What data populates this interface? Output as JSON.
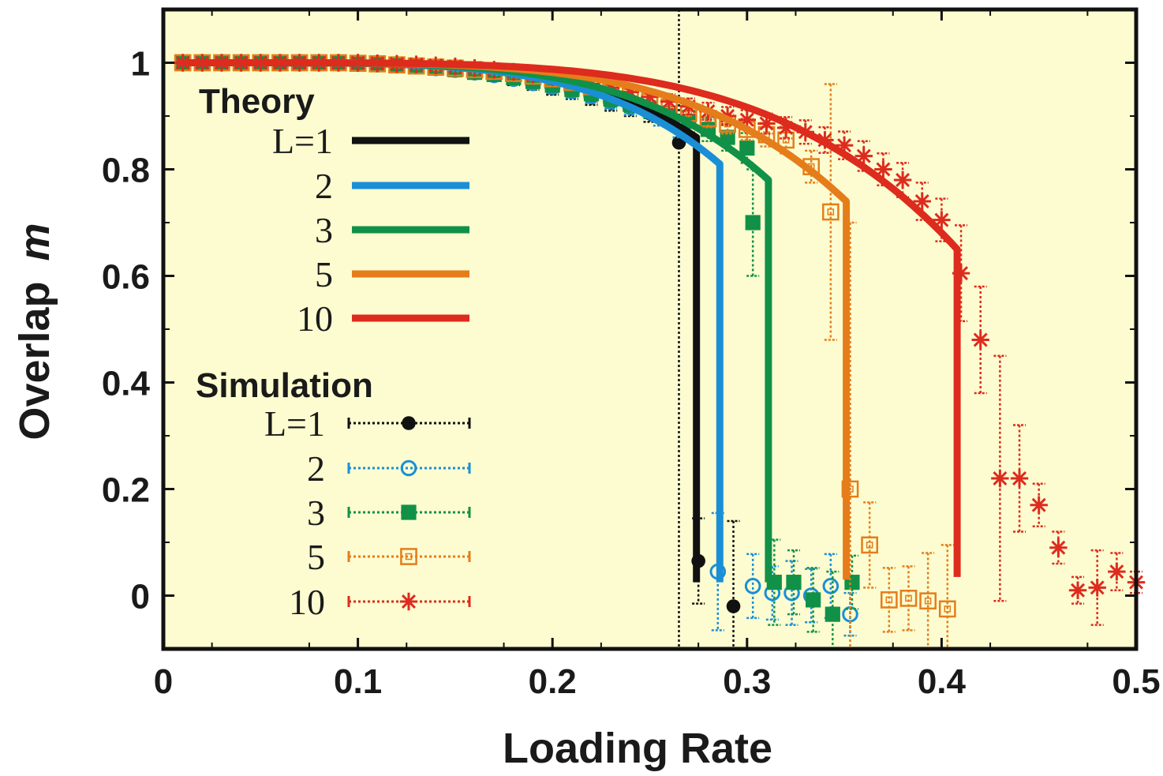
{
  "chart_data": {
    "type": "line",
    "xlabel": "Loading Rate",
    "ylabel_text": "Overlap",
    "ylabel_symbol": "m",
    "xlim": [
      0,
      0.5
    ],
    "ylim": [
      -0.1,
      1.1
    ],
    "x_ticks": [
      "0",
      "0.1",
      "0.2",
      "0.3",
      "0.4",
      "0.5"
    ],
    "y_ticks": [
      "0",
      "0.2",
      "0.4",
      "0.6",
      "0.8",
      "1"
    ],
    "x_tick_values": [
      0,
      0.1,
      0.2,
      0.3,
      0.4,
      0.5
    ],
    "y_tick_values": [
      0,
      0.2,
      0.4,
      0.6,
      0.8,
      1
    ],
    "grid": false,
    "plot_background": "#fcfcd0",
    "legend": {
      "placement": "left",
      "theory_title": "Theory",
      "simulation_title": "Simulation",
      "theory_labels": [
        "L=1",
        "2",
        "3",
        "5",
        "10"
      ],
      "simulation_labels": [
        "L=1",
        "2",
        "3",
        "5",
        "10"
      ]
    },
    "theory": [
      {
        "L": "1",
        "color": "#111111",
        "alpha_c": 0.274,
        "m_c": 0.86,
        "m_end": 0.025,
        "a0": 0.012
      },
      {
        "L": "2",
        "color": "#1a8fd6",
        "alpha_c": 0.286,
        "m_c": 0.81,
        "m_end": 0.025,
        "a0": 0.012
      },
      {
        "L": "3",
        "color": "#119148",
        "alpha_c": 0.311,
        "m_c": 0.78,
        "m_end": 0.025,
        "a0": 0.012
      },
      {
        "L": "5",
        "color": "#e57d1b",
        "alpha_c": 0.351,
        "m_c": 0.74,
        "m_end": 0.03,
        "a0": 0.012
      },
      {
        "L": "10",
        "color": "#dd2b1e",
        "alpha_c": 0.408,
        "m_c": 0.65,
        "m_end": 0.035,
        "a0": 0.012
      }
    ],
    "simulation": [
      {
        "L": "1",
        "color": "#111111",
        "marker": "dot",
        "points": [
          [
            0.01,
            1.0,
            0.003
          ],
          [
            0.02,
            1.0,
            0.003
          ],
          [
            0.03,
            1.0,
            0.003
          ],
          [
            0.04,
            1.0,
            0.003
          ],
          [
            0.05,
            1.0,
            0.003
          ],
          [
            0.06,
            1.0,
            0.003
          ],
          [
            0.07,
            1.0,
            0.003
          ],
          [
            0.08,
            1.0,
            0.003
          ],
          [
            0.09,
            1.0,
            0.003
          ],
          [
            0.1,
            0.998,
            0.004
          ],
          [
            0.11,
            0.997,
            0.004
          ],
          [
            0.12,
            0.995,
            0.005
          ],
          [
            0.13,
            0.993,
            0.005
          ],
          [
            0.14,
            0.99,
            0.006
          ],
          [
            0.15,
            0.985,
            0.007
          ],
          [
            0.16,
            0.98,
            0.008
          ],
          [
            0.17,
            0.975,
            0.009
          ],
          [
            0.18,
            0.968,
            0.01
          ],
          [
            0.19,
            0.96,
            0.011
          ],
          [
            0.2,
            0.952,
            0.012
          ],
          [
            0.21,
            0.945,
            0.013
          ],
          [
            0.22,
            0.935,
            0.014
          ],
          [
            0.23,
            0.925,
            0.015
          ],
          [
            0.24,
            0.915,
            0.015
          ],
          [
            0.25,
            0.905,
            0.016
          ],
          [
            0.265,
            0.85,
            0.95
          ],
          [
            0.275,
            0.065,
            0.08
          ],
          [
            0.293,
            -0.02,
            0.16
          ]
        ]
      },
      {
        "L": "2",
        "color": "#1a8fd6",
        "marker": "circle",
        "points": [
          [
            0.01,
            1.0,
            0.003
          ],
          [
            0.02,
            1.0,
            0.003
          ],
          [
            0.03,
            1.0,
            0.003
          ],
          [
            0.04,
            1.0,
            0.003
          ],
          [
            0.05,
            1.0,
            0.003
          ],
          [
            0.06,
            1.0,
            0.003
          ],
          [
            0.07,
            1.0,
            0.003
          ],
          [
            0.08,
            1.0,
            0.003
          ],
          [
            0.09,
            1.0,
            0.003
          ],
          [
            0.1,
            0.998,
            0.004
          ],
          [
            0.11,
            0.997,
            0.004
          ],
          [
            0.12,
            0.995,
            0.005
          ],
          [
            0.13,
            0.993,
            0.005
          ],
          [
            0.14,
            0.99,
            0.006
          ],
          [
            0.15,
            0.987,
            0.007
          ],
          [
            0.16,
            0.982,
            0.008
          ],
          [
            0.17,
            0.977,
            0.009
          ],
          [
            0.18,
            0.97,
            0.01
          ],
          [
            0.19,
            0.962,
            0.011
          ],
          [
            0.2,
            0.955,
            0.012
          ],
          [
            0.21,
            0.947,
            0.013
          ],
          [
            0.22,
            0.938,
            0.014
          ],
          [
            0.23,
            0.928,
            0.015
          ],
          [
            0.24,
            0.918,
            0.016
          ],
          [
            0.255,
            0.9,
            0.018
          ],
          [
            0.265,
            0.88,
            0.02
          ],
          [
            0.285,
            0.045,
            0.11
          ],
          [
            0.303,
            0.018,
            0.06
          ],
          [
            0.313,
            0.005,
            0.05
          ],
          [
            0.323,
            0.005,
            0.06
          ],
          [
            0.333,
            0.0,
            0.05
          ],
          [
            0.343,
            0.018,
            0.06
          ],
          [
            0.353,
            -0.035,
            0.04
          ]
        ]
      },
      {
        "L": "3",
        "color": "#119148",
        "marker": "square",
        "points": [
          [
            0.01,
            1.0,
            0.003
          ],
          [
            0.02,
            1.0,
            0.003
          ],
          [
            0.03,
            1.0,
            0.003
          ],
          [
            0.04,
            1.0,
            0.003
          ],
          [
            0.05,
            1.0,
            0.003
          ],
          [
            0.06,
            1.0,
            0.003
          ],
          [
            0.07,
            1.0,
            0.003
          ],
          [
            0.08,
            1.0,
            0.003
          ],
          [
            0.09,
            1.0,
            0.003
          ],
          [
            0.1,
            0.998,
            0.004
          ],
          [
            0.11,
            0.997,
            0.004
          ],
          [
            0.12,
            0.995,
            0.005
          ],
          [
            0.13,
            0.993,
            0.005
          ],
          [
            0.14,
            0.99,
            0.006
          ],
          [
            0.15,
            0.987,
            0.007
          ],
          [
            0.16,
            0.982,
            0.008
          ],
          [
            0.17,
            0.978,
            0.009
          ],
          [
            0.18,
            0.972,
            0.01
          ],
          [
            0.19,
            0.965,
            0.011
          ],
          [
            0.2,
            0.958,
            0.012
          ],
          [
            0.21,
            0.95,
            0.013
          ],
          [
            0.22,
            0.942,
            0.014
          ],
          [
            0.23,
            0.932,
            0.015
          ],
          [
            0.24,
            0.922,
            0.015
          ],
          [
            0.25,
            0.912,
            0.016
          ],
          [
            0.26,
            0.9,
            0.018
          ],
          [
            0.27,
            0.89,
            0.02
          ],
          [
            0.28,
            0.875,
            0.022
          ],
          [
            0.29,
            0.86,
            0.025
          ],
          [
            0.3,
            0.84,
            0.028
          ],
          [
            0.303,
            0.7,
            0.1
          ],
          [
            0.314,
            0.025,
            0.08
          ],
          [
            0.324,
            0.025,
            0.06
          ],
          [
            0.334,
            -0.008,
            0.06
          ],
          [
            0.344,
            -0.035,
            0.08
          ],
          [
            0.354,
            0.025,
            0.05
          ]
        ]
      },
      {
        "L": "5",
        "color": "#e57d1b",
        "marker": "open-square",
        "points": [
          [
            0.01,
            1.0,
            0.003
          ],
          [
            0.02,
            1.0,
            0.003
          ],
          [
            0.03,
            1.0,
            0.003
          ],
          [
            0.04,
            1.0,
            0.003
          ],
          [
            0.05,
            1.0,
            0.003
          ],
          [
            0.06,
            1.0,
            0.003
          ],
          [
            0.07,
            1.0,
            0.003
          ],
          [
            0.08,
            1.0,
            0.003
          ],
          [
            0.09,
            1.0,
            0.003
          ],
          [
            0.1,
            0.999,
            0.004
          ],
          [
            0.11,
            0.998,
            0.004
          ],
          [
            0.12,
            0.996,
            0.005
          ],
          [
            0.13,
            0.994,
            0.005
          ],
          [
            0.14,
            0.992,
            0.006
          ],
          [
            0.15,
            0.99,
            0.006
          ],
          [
            0.16,
            0.987,
            0.007
          ],
          [
            0.17,
            0.984,
            0.007
          ],
          [
            0.18,
            0.98,
            0.008
          ],
          [
            0.19,
            0.975,
            0.008
          ],
          [
            0.2,
            0.97,
            0.009
          ],
          [
            0.21,
            0.963,
            0.01
          ],
          [
            0.22,
            0.955,
            0.01
          ],
          [
            0.23,
            0.947,
            0.011
          ],
          [
            0.24,
            0.938,
            0.012
          ],
          [
            0.25,
            0.928,
            0.013
          ],
          [
            0.26,
            0.917,
            0.014
          ],
          [
            0.27,
            0.905,
            0.015
          ],
          [
            0.28,
            0.895,
            0.016
          ],
          [
            0.29,
            0.885,
            0.018
          ],
          [
            0.3,
            0.875,
            0.02
          ],
          [
            0.31,
            0.865,
            0.022
          ],
          [
            0.32,
            0.855,
            0.025
          ],
          [
            0.333,
            0.805,
            0.03
          ],
          [
            0.343,
            0.72,
            0.24
          ],
          [
            0.353,
            0.2,
            0.5
          ],
          [
            0.363,
            0.095,
            0.08
          ],
          [
            0.373,
            -0.008,
            0.06
          ],
          [
            0.383,
            -0.005,
            0.06
          ],
          [
            0.393,
            -0.01,
            0.09
          ],
          [
            0.403,
            -0.025,
            0.12
          ]
        ]
      },
      {
        "L": "10",
        "color": "#dd2b1e",
        "marker": "star",
        "points": [
          [
            0.01,
            1.0,
            0.003
          ],
          [
            0.02,
            1.0,
            0.003
          ],
          [
            0.03,
            1.0,
            0.003
          ],
          [
            0.04,
            1.0,
            0.003
          ],
          [
            0.05,
            1.0,
            0.003
          ],
          [
            0.06,
            1.0,
            0.003
          ],
          [
            0.07,
            1.0,
            0.003
          ],
          [
            0.08,
            1.0,
            0.003
          ],
          [
            0.09,
            1.0,
            0.003
          ],
          [
            0.1,
            1.0,
            0.003
          ],
          [
            0.11,
            0.999,
            0.004
          ],
          [
            0.12,
            0.998,
            0.004
          ],
          [
            0.13,
            0.997,
            0.004
          ],
          [
            0.14,
            0.995,
            0.005
          ],
          [
            0.15,
            0.993,
            0.005
          ],
          [
            0.16,
            0.99,
            0.006
          ],
          [
            0.17,
            0.987,
            0.006
          ],
          [
            0.18,
            0.983,
            0.007
          ],
          [
            0.19,
            0.978,
            0.007
          ],
          [
            0.2,
            0.973,
            0.008
          ],
          [
            0.21,
            0.967,
            0.009
          ],
          [
            0.22,
            0.96,
            0.01
          ],
          [
            0.23,
            0.953,
            0.011
          ],
          [
            0.24,
            0.945,
            0.012
          ],
          [
            0.25,
            0.936,
            0.013
          ],
          [
            0.26,
            0.927,
            0.014
          ],
          [
            0.27,
            0.918,
            0.015
          ],
          [
            0.28,
            0.909,
            0.016
          ],
          [
            0.29,
            0.9,
            0.017
          ],
          [
            0.3,
            0.893,
            0.018
          ],
          [
            0.31,
            0.886,
            0.019
          ],
          [
            0.32,
            0.878,
            0.02
          ],
          [
            0.33,
            0.87,
            0.022
          ],
          [
            0.34,
            0.855,
            0.024
          ],
          [
            0.35,
            0.845,
            0.026
          ],
          [
            0.36,
            0.825,
            0.028
          ],
          [
            0.37,
            0.8,
            0.03
          ],
          [
            0.38,
            0.78,
            0.032
          ],
          [
            0.39,
            0.74,
            0.035
          ],
          [
            0.4,
            0.705,
            0.04
          ],
          [
            0.41,
            0.605,
            0.09
          ],
          [
            0.42,
            0.48,
            0.1
          ],
          [
            0.43,
            0.22,
            0.23
          ],
          [
            0.44,
            0.22,
            0.1
          ],
          [
            0.45,
            0.17,
            0.04
          ],
          [
            0.46,
            0.09,
            0.03
          ],
          [
            0.47,
            0.01,
            0.025
          ],
          [
            0.48,
            0.015,
            0.07
          ],
          [
            0.49,
            0.045,
            0.035
          ],
          [
            0.5,
            0.025,
            0.02
          ]
        ]
      }
    ]
  }
}
